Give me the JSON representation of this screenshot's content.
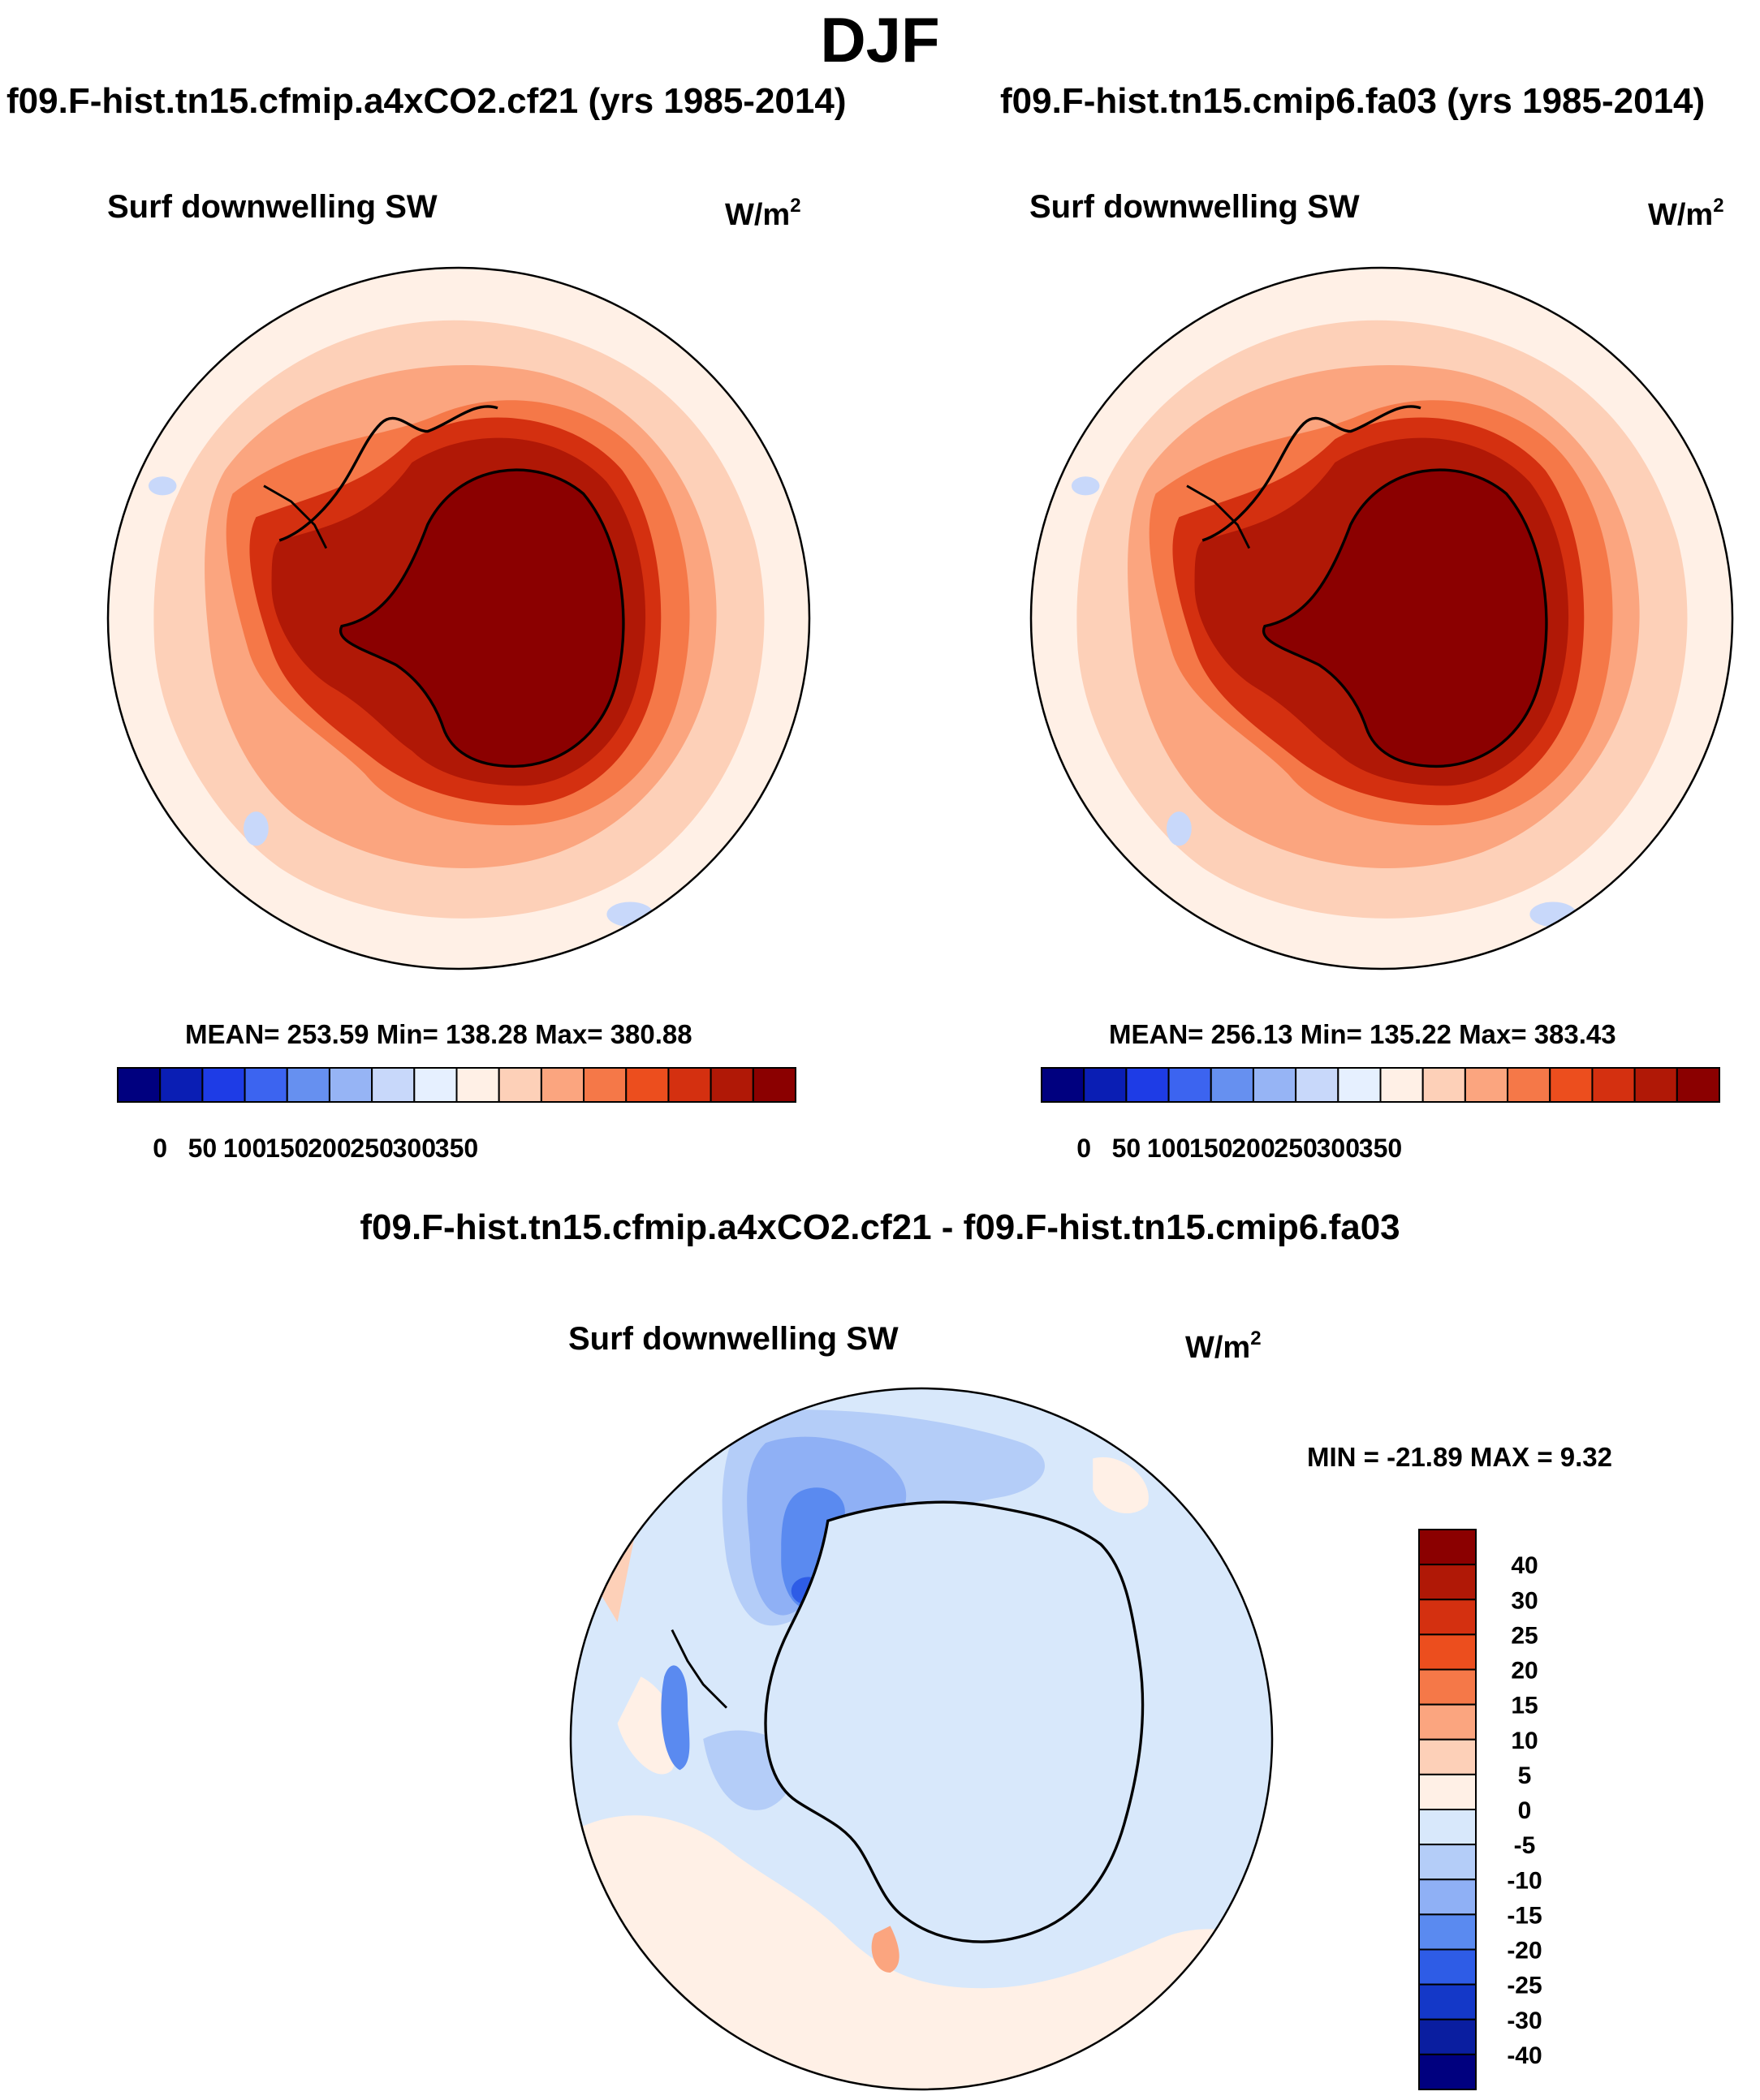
{
  "page": {
    "title": "DJF",
    "diff_title": "f09.F-hist.tn15.cfmip.a4xCO2.cf21 - f09.F-hist.tn15.cmip6.fa03"
  },
  "chart_data": [
    {
      "type": "heatmap",
      "projection": "south-polar-stereographic",
      "title": "f09.F-hist.tn15.cfmip.a4xCO2.cf21 (yrs 1985-2014)",
      "variable": "Surf downwelling SW",
      "units": "W/m",
      "units_exp": "2",
      "stats": {
        "mean": 253.59,
        "min": 138.28,
        "max": 380.88
      },
      "stats_text": "MEAN= 253.59  Min= 138.28  Max= 380.88",
      "colorbar": {
        "orientation": "horizontal",
        "tick_labels": [
          "0",
          "50",
          "100",
          "150",
          "200",
          "250",
          "300",
          "350"
        ],
        "colors": [
          "#00007f",
          "#0a1eb4",
          "#1e3ce6",
          "#3c64f0",
          "#6690f0",
          "#96b4f5",
          "#c8d8fa",
          "#e6f0ff",
          "#fff0e6",
          "#fdd0b8",
          "#fba57f",
          "#f57848",
          "#ec4e1e",
          "#d43010",
          "#b01806",
          "#8b0000"
        ]
      }
    },
    {
      "type": "heatmap",
      "projection": "south-polar-stereographic",
      "title": "f09.F-hist.tn15.cmip6.fa03 (yrs 1985-2014)",
      "variable": "Surf downwelling SW",
      "units": "W/m",
      "units_exp": "2",
      "stats": {
        "mean": 256.13,
        "min": 135.22,
        "max": 383.43
      },
      "stats_text": "MEAN= 256.13  Min= 135.22  Max= 383.43",
      "colorbar": {
        "orientation": "horizontal",
        "tick_labels": [
          "0",
          "50",
          "100",
          "150",
          "200",
          "250",
          "300",
          "350"
        ],
        "colors": [
          "#00007f",
          "#0a1eb4",
          "#1e3ce6",
          "#3c64f0",
          "#6690f0",
          "#96b4f5",
          "#c8d8fa",
          "#e6f0ff",
          "#fff0e6",
          "#fdd0b8",
          "#fba57f",
          "#f57848",
          "#ec4e1e",
          "#d43010",
          "#b01806",
          "#8b0000"
        ]
      }
    },
    {
      "type": "heatmap",
      "projection": "south-polar-stereographic",
      "title": "f09.F-hist.tn15.cfmip.a4xCO2.cf21 - f09.F-hist.tn15.cmip6.fa03",
      "variable": "Surf downwelling SW",
      "units": "W/m",
      "units_exp": "2",
      "stats": {
        "min": -21.89,
        "max": 9.32
      },
      "stats_text": "MIN = -21.89 MAX =   9.32",
      "colorbar": {
        "orientation": "vertical",
        "tick_labels": [
          "40",
          "30",
          "25",
          "20",
          "15",
          "10",
          "5",
          "0",
          "-5",
          "-10",
          "-15",
          "-20",
          "-25",
          "-30",
          "-40"
        ],
        "colors": [
          "#8b0000",
          "#b01806",
          "#d43010",
          "#ec4e1e",
          "#f57848",
          "#fba57f",
          "#fdd0b8",
          "#fff0e6",
          "#d8e8fb",
          "#b4cdf8",
          "#8fb0f5",
          "#5a8af0",
          "#2e5ce6",
          "#1438c8",
          "#0a1ea0",
          "#00007f"
        ]
      }
    }
  ]
}
